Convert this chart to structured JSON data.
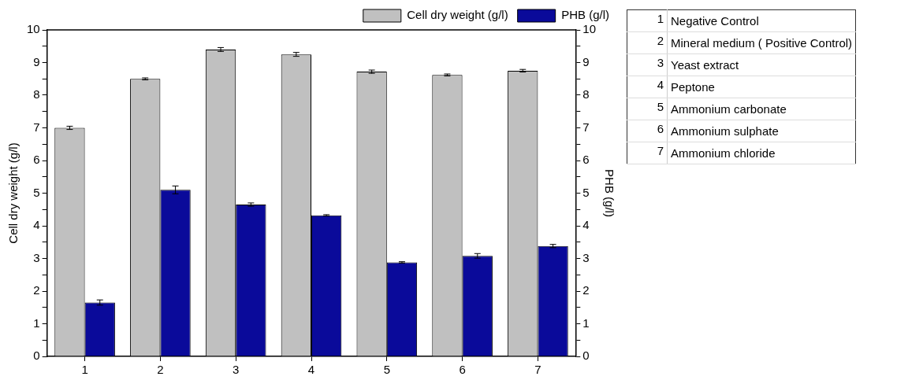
{
  "chart_data": {
    "type": "bar",
    "categories": [
      "1",
      "2",
      "3",
      "4",
      "5",
      "6",
      "7"
    ],
    "series": [
      {
        "name": "Cell dry weight (g/l)",
        "color": "#c0c0c0",
        "values": [
          7.0,
          8.5,
          9.4,
          9.25,
          8.72,
          8.62,
          8.75
        ],
        "errors": [
          0.05,
          0.03,
          0.06,
          0.06,
          0.05,
          0.03,
          0.04
        ]
      },
      {
        "name": "PHB (g/l)",
        "color": "#0a0a9a",
        "axis": "y2",
        "values": [
          1.65,
          5.1,
          4.65,
          4.32,
          2.88,
          3.08,
          3.38
        ],
        "errors": [
          0.08,
          0.12,
          0.05,
          0.02,
          0.02,
          0.07,
          0.05
        ]
      }
    ],
    "ylabel": "Cell dry weight (g/l)",
    "y2label": "PHB (g/l)",
    "ylim": [
      0,
      10
    ],
    "yticks": [
      0,
      {
        "value": 0.5,
        "label": null
      },
      1,
      {
        "value": 1.5,
        "label": null
      },
      2,
      {
        "value": 2.5,
        "label": null
      },
      3,
      {
        "value": 3.5,
        "label": null
      },
      4,
      {
        "value": 4.5,
        "label": null
      },
      5,
      {
        "value": 5.5,
        "label": null
      },
      6,
      {
        "value": 6.5,
        "label": null
      },
      7,
      {
        "value": 7.5,
        "label": null
      },
      8,
      {
        "value": 8.5,
        "label": null
      },
      9,
      {
        "value": 9.5,
        "label": null
      },
      10
    ],
    "y2lim": [
      0,
      10
    ],
    "y2ticks": [
      0,
      {
        "value": 0.5,
        "label": null
      },
      1,
      {
        "value": 1.5,
        "label": null
      },
      2,
      {
        "value": 2.5,
        "label": null
      },
      3,
      {
        "value": 3.5,
        "label": null
      },
      4,
      {
        "value": 4.5,
        "label": null
      },
      5,
      {
        "value": 5.5,
        "label": null
      },
      6,
      {
        "value": 6.5,
        "label": null
      },
      7,
      {
        "value": 7.5,
        "label": null
      },
      8,
      {
        "value": 8.5,
        "label": null
      },
      9,
      {
        "value": 9.5,
        "label": null
      },
      10
    ],
    "grid": false,
    "legend": "top right",
    "annotations": [
      "Negative Control",
      "Mineral medium ( Positive Control)",
      "Yeast extract",
      "Peptone",
      "Ammonium carbonate",
      "Ammonium sulphate",
      "Ammonium chloride"
    ]
  }
}
